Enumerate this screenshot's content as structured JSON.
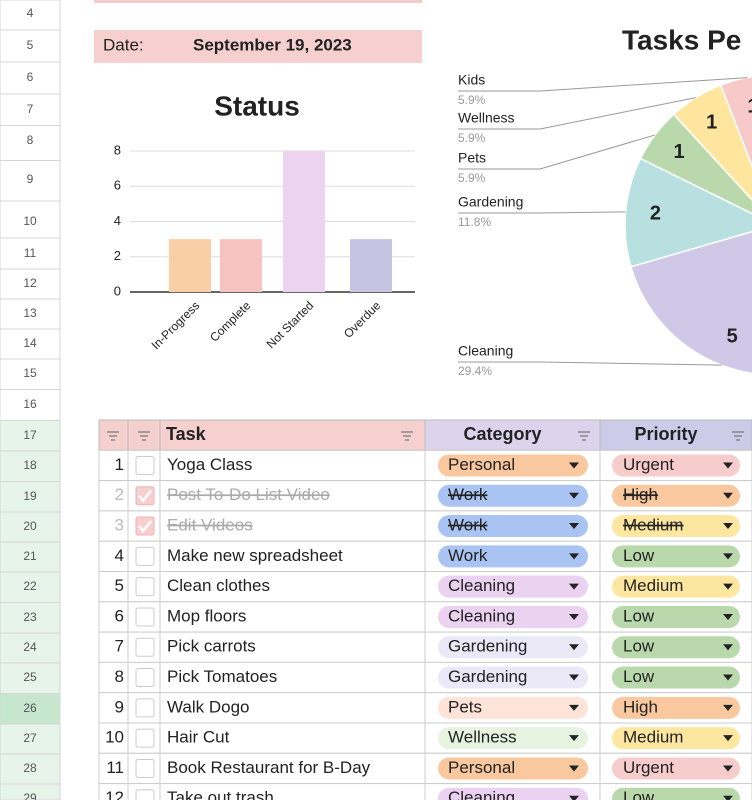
{
  "row_numbers": [
    4,
    5,
    6,
    7,
    8,
    9,
    10,
    11,
    12,
    13,
    14,
    15,
    16,
    17,
    18,
    19,
    20,
    21,
    22,
    23,
    24,
    25,
    26,
    27,
    28,
    29
  ],
  "date": {
    "label": "Date:",
    "value": "September 19, 2023"
  },
  "status_chart": {
    "type": "bar",
    "title": "Status",
    "categories": [
      "In-Progress",
      "Complete",
      "Not Started",
      "Overdue"
    ],
    "values": [
      3,
      3,
      8,
      3
    ],
    "colors": [
      "#f9cfa8",
      "#f7c3c0",
      "#ecd3f0",
      "#c7c3e2"
    ],
    "ylim": [
      0,
      8
    ],
    "yticks": [
      0,
      2,
      4,
      6,
      8
    ],
    "grid": true
  },
  "category_chart": {
    "type": "pie",
    "title": "Tasks Pe",
    "categories": [
      "Kids",
      "Wellness",
      "Pets",
      "Gardening",
      "Cleaning"
    ],
    "values": [
      1,
      1,
      1,
      2,
      5
    ],
    "percent_labels": [
      "5.9%",
      "5.9%",
      "5.9%",
      "11.8%",
      "29.4%"
    ],
    "colors": [
      "#f7c9c9",
      "#ffe59e",
      "#b9d9ac",
      "#b8e0e0",
      "#cfc8e6"
    ]
  },
  "table": {
    "headers": [
      "Task",
      "Category",
      "Priority"
    ],
    "rows": [
      {
        "number": 1,
        "done": false,
        "task": "Yoga Class",
        "category": "Personal",
        "priority": "Urgent"
      },
      {
        "number": 2,
        "done": true,
        "task": "Post To-Do List Video",
        "category": "Work",
        "priority": "High"
      },
      {
        "number": 3,
        "done": true,
        "task": "Edit Videos",
        "category": "Work",
        "priority": "Medium"
      },
      {
        "number": 4,
        "done": false,
        "task": "Make new spreadsheet",
        "category": "Work",
        "priority": "Low"
      },
      {
        "number": 5,
        "done": false,
        "task": "Clean clothes",
        "category": "Cleaning",
        "priority": "Medium"
      },
      {
        "number": 6,
        "done": false,
        "task": "Mop floors",
        "category": "Cleaning",
        "priority": "Low"
      },
      {
        "number": 7,
        "done": false,
        "task": "Pick carrots",
        "category": "Gardening",
        "priority": "Low"
      },
      {
        "number": 8,
        "done": false,
        "task": "Pick Tomatoes",
        "category": "Gardening",
        "priority": "Low"
      },
      {
        "number": 9,
        "done": false,
        "task": "Walk Dogo",
        "category": "Pets",
        "priority": "High"
      },
      {
        "number": 10,
        "done": false,
        "task": "Hair Cut",
        "category": "Wellness",
        "priority": "Medium"
      },
      {
        "number": 11,
        "done": false,
        "task": "Book Restaurant for B-Day",
        "category": "Personal",
        "priority": "Urgent"
      },
      {
        "number": 12,
        "done": false,
        "task": "Take out trash",
        "category": "Cleaning",
        "priority": "Low"
      }
    ],
    "category_colors": {
      "Personal": "#f9c89e",
      "Work": "#a9c4f2",
      "Cleaning": "#ebd2f0",
      "Gardening": "#ebe8f8",
      "Pets": "#fde3d8",
      "Wellness": "#e6f3e1"
    },
    "priority_colors": {
      "Urgent": "#f7cccc",
      "High": "#f9c89e",
      "Medium": "#fde7a0",
      "Low": "#b9d9ac"
    }
  }
}
